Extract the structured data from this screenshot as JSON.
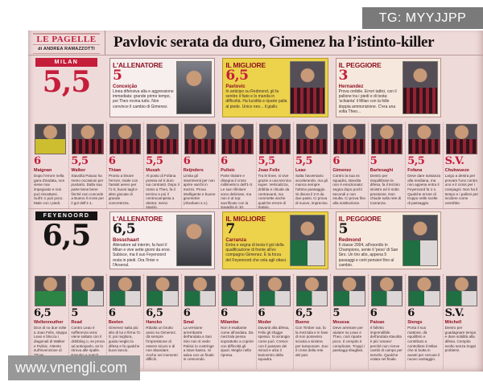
{
  "watermarks": {
    "top_right": "TG: MYYJJPP",
    "bottom_left": "www.vnengli.com"
  },
  "masthead": {
    "title": "LE PAGELLE",
    "byline": "di ANDREA RAMAZZOTTI"
  },
  "headline": "Pavlovic serata da duro, Gimenez ha l’istinto-killer",
  "colors": {
    "accent_red": "#c41e3a",
    "page_pink": "#efdada",
    "highlight_yellow": "#edd24b",
    "fey_black": "#171414"
  },
  "milan": {
    "team": "MILAN",
    "team_rating": "5,5",
    "coach": {
      "heading": "L'ALLENATORE",
      "rating": "5",
      "name": "Conceição",
      "text": "Linea difensiva alta e aggressione immediata: grande primo tempo, poi Theo rovina tutto. Non convince il cambio di Gimenez."
    },
    "best": {
      "heading": "IL MIGLIORE",
      "rating": "6,5",
      "name": "Pavlovic",
      "text": "In anticipo su Redmond, gli fa sentire il fiato e lo manda in difficoltà. Ha lucidità e riparte palla al piede. Unico neo... il giallo."
    },
    "worst": {
      "heading": "IL PEGGIORE",
      "rating": "3",
      "name": "Hernandez",
      "text": "Prova orribile. Errori tattici, con il pallone tra i piedi e di testa: 'schianta' il Milan con la folle doppia ammonizione. C'era una volta Theo..."
    },
    "players": [
      {
        "name": "Maignan",
        "rating": "6",
        "text": "Dopo l'errore nella gara d'andata, non viene mai impegnato e non può riscattarsi. Sull'1-1 può poco. Male con i piedi."
      },
      {
        "name": "Walker",
        "rating": "5,5",
        "text": "Stavolta Paixao ha meno occasioni per puntarlo. Dalla sua parte tiene bene finché non concede a Bueno il cross per il gol dell'1-1."
      },
      {
        "name": "Thiaw",
        "rating": "6",
        "text": "Pronto a limare l'errore, risale con l'assist aereo per l'1-0, buoni tagli e altre giocate di grande concretezza."
      },
      {
        "name": "Musah",
        "rating": "5,5",
        "text": "Al posto di Fofana pressa ed è duro sui contrasti. Dopo il rosso a Theo, fa il terzino e poi il centrocampista a destra: meno spazio."
      },
      {
        "name": "Reijnders",
        "rating": "6",
        "text": "Limita gli inserimenti per non aprire varchi in mezzo. Prova intelligente e buone geometrie (Abraham s.v.)."
      },
      {
        "name": "Pulisic",
        "rating": "6",
        "text": "Parte titolare e disegna il cross millimetrico dell'1-0. Le sue rifiniture sono deliziose, ma non è al top: sacrificato con la squadra in 10."
      },
      {
        "name": "Joao Felix",
        "rating": "5,5",
        "text": "Tra le linee, si vive grazie a una tecnica super. Verticalizza, dribbla e chiude da centravanti, ma commette anche qualche errore di troppo."
      },
      {
        "name": "Leao",
        "rating": "5,5",
        "text": "Salta l'avversario accelerando, ma gli manca sempre l'ultimo passaggio. Si divora il 2-0 da due passi. Ci prova di nuovo, impreciso."
      },
      {
        "name": "Gimenez",
        "rating": "6",
        "text": "Contro la sua ex squadra, stavolta non è emozionato: segna dopo pochi secondi e non esulta. Ci prova fino alla sostituzione."
      },
      {
        "name": "Bartesaghi",
        "rating": "5",
        "text": "Dentro per riequilibrare la difesa, fa il terzino sinistro ed è sotto pressione. Non chiude sulla rete di Carranza."
      },
      {
        "name": "Fofana",
        "rating": "5,5",
        "text": "Deve dare sostanza alla mediana, ma non appena entra il Feyenoord fa 1-1. Qualche errore di troppo nelle scelte di passaggio."
      },
      {
        "name": "Chukwueze",
        "rating": "S.V.",
        "text": "Largo a destra per provare l'uno contro uno e il cross per i compagni. Non ha il tempo e i palloni per incidere come vorrebbe."
      }
    ]
  },
  "feyenoord": {
    "team": "FEYENOORD",
    "team_rating": "6,5",
    "coach": {
      "heading": "L'ALLENATORE",
      "rating": "6,5",
      "name": "Bosschaart",
      "text": "Allenatore ad interim, fa fuori il Milan e vive sette giorni da eroe. Subisce, ma il suo Feyenoord resta in piedi. Ora l'Inter e l'Arsenal."
    },
    "best": {
      "heading": "IL MIGLIORE",
      "rating": "7",
      "name": "Carranza",
      "text": "Entra e segna di testa il gol della qualificazione di fronte all'ex compagno Gimenez. È la forza del Feyenoord che vola agli ottavi."
    },
    "worst": {
      "heading": "IL PEGGIORE",
      "rating": "5",
      "name": "Redmond",
      "text": "Il classe 2004, all'esordio in Champions, sente il 'peso' di San Siro. Un tiro alto, appena 5 passaggi e certi pensieri fino al cambio."
    },
    "players": [
      {
        "name": "Wellenreuther",
        "rating": "6,5",
        "text": "Dice di no due volte a Joao Felix, stoppa Leao e blocca i diagonali di Walker e Pulisic. Attento sull'invenzione di Thiaw."
      },
      {
        "name": "Read",
        "rating": "5",
        "text": "Contro Leao è sofferenza vera: viene saltato con il dribbling o, se prova ad anticiparlo, se lo ritrova alle spalle. Espulso a match finito."
      },
      {
        "name": "Beelen",
        "rating": "6",
        "text": "Gimenez salta più alto di lui e firma l'1-0; poi migliora, guida meglio la difesa e fa qualche buon lancio."
      },
      {
        "name": "Hancko",
        "rating": "6,5",
        "text": "Ribalta un brutto avvio su Gimenez, dà sempre l'impressione di essere sicuro e di non sbandare. Anche nei momenti difficili."
      },
      {
        "name": "Smal",
        "rating": "6",
        "text": "La versione arrembante dell'andata a San Siro non si vede: Pulisic lo costringe a stare basso. Si salva con un finale in crescendo."
      },
      {
        "name": "Milambo",
        "rating": "6",
        "text": "Non è esaltante come all'andata. Da mezzala pensa soprattutto a coprire con difficoltà gli spazi. Meglio nella ripresa."
      },
      {
        "name": "Moder",
        "rating": "6",
        "text": "Davanti alla difesa, Felix gli sfugge spesso. Si arrangia come può. Cresce con il passare dei minuti e alza il baricentro della squadra."
      },
      {
        "name": "Bueno",
        "rating": "6,5",
        "text": "Con Timber out, fa la mezzala e in fase di non possesso scivola a sinistra per tamponare. Suo il cross della rete del pari."
      },
      {
        "name": "Moussa",
        "rating": "5",
        "text": "Deve arretrare per aiutare su Leao e Theo, così riparte poco. Il compito è complicato. Troppi i passaggi sbagliati."
      },
      {
        "name": "Paixao",
        "rating": "6",
        "text": "Il folletto imprendibile dell'andata stavolta è più 'umano' perché non riceve cambi di campo per servirlo. Qualche volata nel finale."
      },
      {
        "name": "Stengs",
        "rating": "6",
        "text": "Porta il suo mattone, dà equilibrio e contributo a controllare il Milan che si butta in avanti per cercare il nuovo vantaggio."
      },
      {
        "name": "Mitchell",
        "rating": "S.V.",
        "text": "Dentro per guadagnare tempo e dare solidità alla difesa. Compito svolto senza troppi problemi."
      }
    ]
  }
}
